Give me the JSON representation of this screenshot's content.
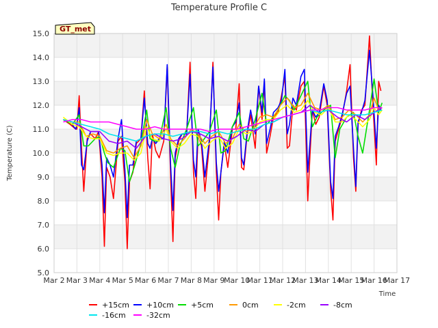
{
  "chart_data": {
    "type": "line",
    "title": "Temperature Profile C",
    "xlabel": "Time",
    "ylabel": "Temperature (C)",
    "badge": "GT_met",
    "ylim": [
      5.0,
      15.0
    ],
    "yticks": [
      "5.0",
      "6.0",
      "7.0",
      "8.0",
      "9.0",
      "10.0",
      "11.0",
      "12.0",
      "13.0",
      "14.0",
      "15.0"
    ],
    "xlim": [
      2,
      17
    ],
    "xticks": [
      "Mar 2",
      "Mar 3",
      "Mar 4",
      "Mar 5",
      "Mar 6",
      "Mar 7",
      "Mar 8",
      "Mar 9",
      "Mar 10",
      "Mar 11",
      "Mar 12",
      "Mar 13",
      "Mar 14",
      "Mar 15",
      "Mar 16",
      "Mar 17"
    ],
    "grid": true,
    "legend_position": "bottom",
    "series": [
      {
        "name": "+15cm",
        "color": "#ff0000",
        "x": [
          2.4,
          2.7,
          2.95,
          3.0,
          3.1,
          3.2,
          3.3,
          3.45,
          3.6,
          3.8,
          3.95,
          4.1,
          4.2,
          4.3,
          4.45,
          4.6,
          4.8,
          4.95,
          5.1,
          5.2,
          5.3,
          5.45,
          5.6,
          5.8,
          5.95,
          6.1,
          6.2,
          6.3,
          6.45,
          6.6,
          6.8,
          6.95,
          7.1,
          7.2,
          7.3,
          7.45,
          7.6,
          7.8,
          7.95,
          8.1,
          8.2,
          8.3,
          8.45,
          8.6,
          8.8,
          8.95,
          9.1,
          9.2,
          9.3,
          9.45,
          9.6,
          9.8,
          9.95,
          10.1,
          10.2,
          10.3,
          10.45,
          10.6,
          10.8,
          10.95,
          11.1,
          11.2,
          11.3,
          11.45,
          11.6,
          11.8,
          11.95,
          12.1,
          12.2,
          12.3,
          12.45,
          12.6,
          12.8,
          12.95,
          13.1,
          13.2,
          13.3,
          13.45,
          13.6,
          13.8,
          13.95,
          14.1,
          14.2,
          14.3,
          14.45,
          14.6,
          14.8,
          14.95,
          15.1,
          15.2,
          15.3,
          15.45,
          15.6,
          15.8,
          15.95,
          16.1,
          16.2,
          16.3
        ],
        "y": [
          11.4,
          11.2,
          11.0,
          11.0,
          12.4,
          10.2,
          8.4,
          10.6,
          10.8,
          10.6,
          10.9,
          9.0,
          6.1,
          9.4,
          9.0,
          8.1,
          10.5,
          10.7,
          8.8,
          6.0,
          8.8,
          9.2,
          10.4,
          10.6,
          12.6,
          9.8,
          8.5,
          10.8,
          10.1,
          9.8,
          10.5,
          13.6,
          9.0,
          6.3,
          9.8,
          10.5,
          10.8,
          10.8,
          13.8,
          9.2,
          8.1,
          10.8,
          10.3,
          8.4,
          10.4,
          13.8,
          9.2,
          7.2,
          9.2,
          10.4,
          9.4,
          11.0,
          11.0,
          12.9,
          9.4,
          9.3,
          10.8,
          11.6,
          10.2,
          12.8,
          11.4,
          13.0,
          10.0,
          10.7,
          11.5,
          11.7,
          12.4,
          13.2,
          10.2,
          10.3,
          12.0,
          11.8,
          12.8,
          13.0,
          8.0,
          10.0,
          11.8,
          11.2,
          11.5,
          12.8,
          12.0,
          8.5,
          7.2,
          10.5,
          11.0,
          11.5,
          12.6,
          13.7,
          9.8,
          8.4,
          11.2,
          11.8,
          12.0,
          14.9,
          12.0,
          9.5,
          13.0,
          12.6
        ]
      },
      {
        "name": "+10cm",
        "color": "#0000ff",
        "x": [
          2.4,
          2.7,
          2.95,
          3.0,
          3.1,
          3.2,
          3.3,
          3.45,
          3.6,
          3.8,
          3.95,
          4.1,
          4.2,
          4.3,
          4.45,
          4.6,
          4.8,
          4.95,
          5.1,
          5.2,
          5.3,
          5.45,
          5.6,
          5.8,
          5.95,
          6.1,
          6.2,
          6.3,
          6.45,
          6.6,
          6.8,
          6.95,
          7.1,
          7.2,
          7.3,
          7.45,
          7.6,
          7.8,
          7.95,
          8.1,
          8.2,
          8.3,
          8.45,
          8.6,
          8.8,
          8.95,
          9.1,
          9.2,
          9.3,
          9.45,
          9.6,
          9.8,
          9.95,
          10.1,
          10.2,
          10.3,
          10.45,
          10.6,
          10.8,
          10.95,
          11.1,
          11.2,
          11.3,
          11.45,
          11.6,
          11.8,
          11.95,
          12.1,
          12.2,
          12.3,
          12.45,
          12.6,
          12.8,
          12.95,
          13.1,
          13.2,
          13.3,
          13.45,
          13.6,
          13.8,
          13.95,
          14.1,
          14.2,
          14.3,
          14.45,
          14.6,
          14.8,
          14.95,
          15.1,
          15.2,
          15.3,
          15.45,
          15.6,
          15.8,
          15.95,
          16.1,
          16.2,
          16.3
        ],
        "y": [
          11.4,
          11.3,
          11.0,
          11.2,
          11.9,
          9.5,
          9.3,
          10.5,
          10.9,
          10.9,
          10.9,
          9.5,
          7.5,
          9.8,
          9.5,
          9.0,
          10.6,
          11.4,
          9.3,
          7.3,
          9.5,
          9.5,
          10.5,
          10.6,
          12.3,
          10.4,
          10.2,
          10.6,
          10.4,
          10.6,
          10.6,
          13.7,
          9.5,
          7.6,
          10.0,
          10.6,
          10.8,
          10.8,
          13.3,
          9.7,
          9.0,
          11.0,
          10.5,
          9.0,
          10.6,
          13.6,
          9.6,
          8.4,
          9.2,
          10.5,
          10.0,
          11.1,
          11.3,
          12.1,
          9.8,
          9.5,
          10.9,
          11.8,
          10.8,
          12.8,
          11.7,
          13.1,
          10.4,
          11.0,
          11.7,
          11.9,
          12.2,
          13.5,
          10.8,
          11.2,
          12.3,
          12.0,
          13.2,
          13.5,
          9.2,
          10.5,
          11.8,
          11.5,
          11.7,
          12.9,
          12.2,
          8.8,
          8.1,
          10.7,
          11.1,
          11.6,
          12.5,
          12.8,
          10.2,
          8.6,
          11.3,
          11.7,
          12.2,
          14.3,
          12.4,
          10.2,
          12.0,
          11.8
        ]
      },
      {
        "name": "+5cm",
        "color": "#00dd00",
        "x": [
          2.4,
          2.8,
          3.1,
          3.3,
          3.5,
          3.8,
          4.0,
          4.2,
          4.35,
          4.6,
          4.9,
          5.1,
          5.3,
          5.5,
          5.8,
          6.05,
          6.2,
          6.4,
          6.6,
          6.9,
          7.1,
          7.3,
          7.5,
          7.8,
          8.1,
          8.3,
          8.5,
          8.8,
          9.1,
          9.3,
          9.5,
          9.8,
          10.1,
          10.3,
          10.5,
          10.8,
          11.1,
          11.3,
          11.5,
          11.8,
          12.1,
          12.3,
          12.5,
          12.8,
          13.1,
          13.3,
          13.5,
          13.8,
          14.1,
          14.3,
          14.5,
          14.8,
          15.1,
          15.3,
          15.5,
          15.8,
          16.0,
          16.2,
          16.35
        ],
        "y": [
          11.4,
          11.2,
          11.6,
          10.3,
          10.3,
          10.6,
          10.7,
          10.0,
          9.6,
          9.4,
          10.2,
          10.1,
          8.8,
          9.4,
          10.4,
          11.8,
          10.6,
          10.5,
          10.5,
          11.9,
          10.2,
          9.4,
          10.3,
          11.0,
          11.9,
          10.3,
          10.5,
          10.9,
          11.8,
          10.0,
          10.1,
          11.1,
          11.7,
          10.6,
          10.5,
          11.4,
          12.5,
          11.2,
          11.4,
          11.8,
          12.4,
          12.2,
          11.8,
          12.4,
          13.0,
          11.1,
          11.5,
          11.8,
          12.0,
          9.8,
          11.0,
          11.5,
          11.7,
          10.7,
          10.0,
          11.8,
          13.1,
          11.7,
          12.1
        ]
      },
      {
        "name": "0cm",
        "color": "#ff9900",
        "x": [
          2.4,
          2.8,
          3.1,
          3.4,
          3.7,
          4.0,
          4.3,
          4.6,
          4.9,
          5.2,
          5.5,
          5.8,
          6.05,
          6.3,
          6.6,
          6.9,
          7.1,
          7.4,
          7.7,
          8.0,
          8.3,
          8.6,
          8.9,
          9.2,
          9.5,
          9.8,
          10.1,
          10.4,
          10.7,
          11.0,
          11.3,
          11.6,
          11.9,
          12.2,
          12.5,
          12.8,
          13.1,
          13.4,
          13.7,
          14.0,
          14.3,
          14.6,
          14.9,
          15.2,
          15.5,
          15.8,
          16.0,
          16.2,
          16.35
        ],
        "y": [
          11.4,
          11.3,
          11.3,
          10.7,
          10.8,
          10.7,
          10.1,
          10.0,
          10.2,
          10.3,
          9.8,
          10.3,
          11.4,
          10.8,
          10.6,
          11.2,
          10.6,
          10.3,
          10.6,
          11.0,
          10.8,
          10.4,
          10.7,
          10.9,
          10.4,
          10.6,
          11.2,
          10.9,
          11.0,
          11.5,
          11.6,
          11.5,
          12.0,
          12.3,
          11.9,
          12.0,
          12.5,
          11.9,
          11.8,
          12.0,
          11.4,
          11.5,
          11.8,
          11.6,
          11.3,
          11.6,
          12.3,
          11.8,
          11.9
        ]
      },
      {
        "name": "-2cm",
        "color": "#ffff00",
        "x": [
          2.4,
          2.8,
          3.1,
          3.4,
          3.7,
          4.0,
          4.3,
          4.6,
          4.9,
          5.2,
          5.5,
          5.8,
          6.05,
          6.3,
          6.6,
          6.9,
          7.1,
          7.4,
          7.7,
          8.0,
          8.3,
          8.6,
          8.9,
          9.2,
          9.5,
          9.8,
          10.1,
          10.4,
          10.7,
          11.0,
          11.3,
          11.6,
          11.9,
          12.2,
          12.5,
          12.8,
          13.1,
          13.4,
          13.7,
          14.0,
          14.3,
          14.6,
          14.9,
          15.2,
          15.5,
          15.8,
          16.0,
          16.2,
          16.35
        ],
        "y": [
          11.5,
          11.2,
          11.1,
          10.7,
          10.6,
          10.6,
          10.0,
          9.9,
          10.0,
          10.0,
          9.7,
          10.0,
          11.1,
          10.6,
          10.5,
          11.0,
          10.5,
          10.2,
          10.4,
          10.8,
          10.7,
          10.2,
          10.5,
          10.7,
          10.2,
          10.4,
          11.0,
          10.8,
          10.9,
          11.3,
          11.4,
          11.4,
          11.8,
          12.0,
          11.7,
          11.8,
          12.2,
          11.7,
          11.6,
          11.9,
          11.3,
          11.3,
          11.6,
          11.4,
          11.1,
          11.4,
          11.9,
          11.6,
          11.8
        ]
      },
      {
        "name": "-8cm",
        "color": "#9900ff",
        "x": [
          2.4,
          2.8,
          3.2,
          3.6,
          4.0,
          4.4,
          4.8,
          5.2,
          5.6,
          6.0,
          6.4,
          6.8,
          7.2,
          7.6,
          8.0,
          8.4,
          8.8,
          9.2,
          9.6,
          10.0,
          10.4,
          10.8,
          11.2,
          11.6,
          12.0,
          12.4,
          12.8,
          13.2,
          13.6,
          14.0,
          14.4,
          14.8,
          15.2,
          15.6,
          16.0,
          16.35
        ],
        "y": [
          11.4,
          11.3,
          11.1,
          10.9,
          10.9,
          10.5,
          10.4,
          10.5,
          10.2,
          10.7,
          10.8,
          10.6,
          10.5,
          10.6,
          10.9,
          10.8,
          10.6,
          10.7,
          10.5,
          10.7,
          11.0,
          10.9,
          11.2,
          11.3,
          11.5,
          11.6,
          11.7,
          12.0,
          11.7,
          11.8,
          11.5,
          11.3,
          11.6,
          11.4,
          11.7,
          11.9
        ]
      },
      {
        "name": "-16cm",
        "color": "#00e5ee",
        "x": [
          2.4,
          2.8,
          3.2,
          3.6,
          4.0,
          4.4,
          4.8,
          5.2,
          5.6,
          6.0,
          6.4,
          6.8,
          7.2,
          7.6,
          8.0,
          8.4,
          8.8,
          9.2,
          9.6,
          10.0,
          10.4,
          10.8,
          11.2,
          11.6,
          12.0,
          12.4,
          12.8,
          13.2,
          13.6,
          14.0,
          14.4,
          14.8,
          15.2,
          15.6,
          16.0,
          16.35
        ],
        "y": [
          11.4,
          11.3,
          11.2,
          11.1,
          11.0,
          10.8,
          10.7,
          10.6,
          10.5,
          10.7,
          10.8,
          10.8,
          10.7,
          10.8,
          10.9,
          10.9,
          10.8,
          10.9,
          10.8,
          10.9,
          11.0,
          11.0,
          11.2,
          11.3,
          11.5,
          11.6,
          11.7,
          11.8,
          11.7,
          11.8,
          11.7,
          11.6,
          11.6,
          11.6,
          11.7,
          11.8
        ]
      },
      {
        "name": "-32cm",
        "color": "#ff00ff",
        "x": [
          2.4,
          2.8,
          3.2,
          3.6,
          4.0,
          4.4,
          4.8,
          5.2,
          5.6,
          6.0,
          6.4,
          6.8,
          7.2,
          7.6,
          8.0,
          8.4,
          8.8,
          9.2,
          9.6,
          10.0,
          10.4,
          10.8,
          11.2,
          11.6,
          12.0,
          12.4,
          12.8,
          13.2,
          13.6,
          14.0,
          14.4,
          14.8,
          15.2,
          15.6,
          16.0,
          16.35
        ],
        "y": [
          11.3,
          11.4,
          11.4,
          11.3,
          11.3,
          11.3,
          11.2,
          11.1,
          11.0,
          11.0,
          11.1,
          11.0,
          11.0,
          11.0,
          11.0,
          11.0,
          10.9,
          11.0,
          11.0,
          11.0,
          11.1,
          11.2,
          11.3,
          11.4,
          11.5,
          11.6,
          11.7,
          11.8,
          11.8,
          11.9,
          11.9,
          11.8,
          11.8,
          11.8,
          11.9,
          11.9
        ]
      }
    ]
  }
}
